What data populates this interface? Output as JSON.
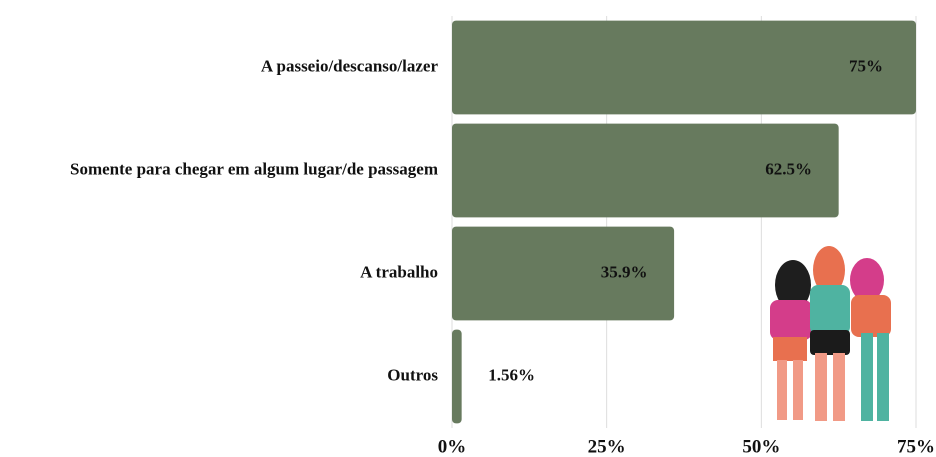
{
  "chart_data": {
    "type": "bar",
    "orientation": "horizontal",
    "categories": [
      "A passeio/descanso/lazer",
      "Somente para chegar em algum lugar/de passagem",
      "A trabalho",
      "Outros"
    ],
    "values": [
      75,
      62.5,
      35.9,
      1.56
    ],
    "value_labels": [
      "75%",
      "62.5%",
      "35.9%",
      "1.56%"
    ],
    "color": "#677a5e",
    "xlim": [
      0,
      75
    ],
    "xticks": [
      {
        "value": 0,
        "label": "0%"
      },
      {
        "value": 25,
        "label": "25%"
      },
      {
        "value": 50,
        "label": "50%"
      },
      {
        "value": 75,
        "label": "75%"
      }
    ],
    "grid": true
  }
}
